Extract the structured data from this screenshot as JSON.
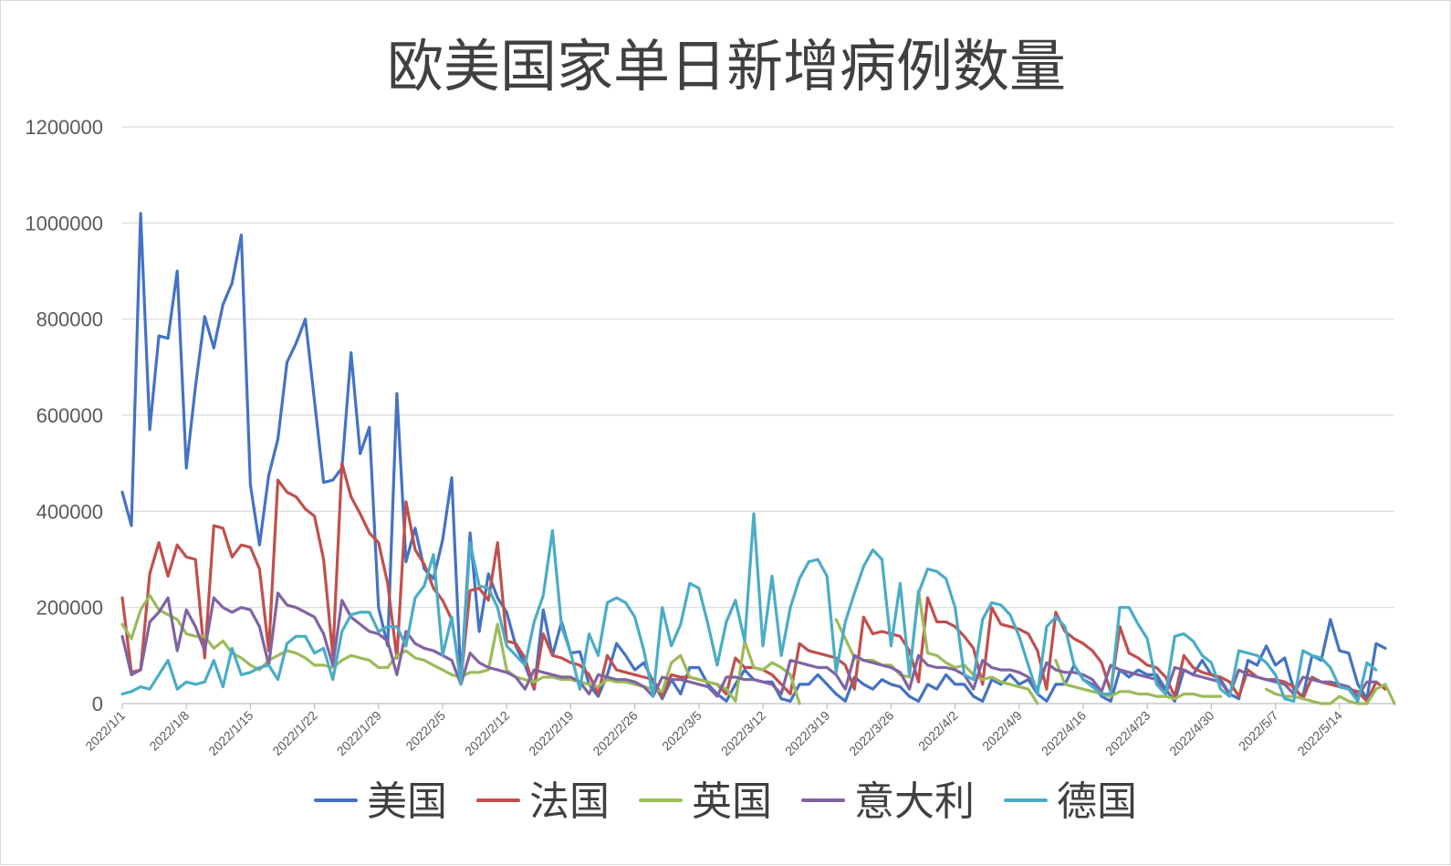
{
  "chart_data": {
    "type": "line",
    "title": "欧美国家单日新增病例数量",
    "xlabel": "",
    "ylabel": "",
    "ylim": [
      0,
      1200000
    ],
    "yticks": [
      "0",
      "200000",
      "400000",
      "600000",
      "800000",
      "1000000",
      "1200000"
    ],
    "ytick_values": [
      0,
      200000,
      400000,
      600000,
      800000,
      1000000,
      1200000
    ],
    "x_start": "2022/1/1",
    "x_end": "2022/5/18",
    "xtick_labels": [
      "2022/1/1",
      "2022/1/8",
      "2022/1/15",
      "2022/1/22",
      "2022/1/29",
      "2022/2/5",
      "2022/2/12",
      "2022/2/19",
      "2022/2/26",
      "2022/3/5",
      "2022/3/12",
      "2022/3/19",
      "2022/3/26",
      "2022/4/2",
      "2022/4/9",
      "2022/4/16",
      "2022/4/23",
      "2022/4/30",
      "2022/5/7",
      "2022/5/14"
    ],
    "grid": true,
    "legend_position": "bottom",
    "series": [
      {
        "name": "美国",
        "color": "#4472c4",
        "values": [
          440000,
          370000,
          1020000,
          570000,
          765000,
          760000,
          900000,
          490000,
          660000,
          805000,
          740000,
          830000,
          875000,
          975000,
          455000,
          330000,
          475000,
          550000,
          710000,
          750000,
          800000,
          630000,
          460000,
          465000,
          490000,
          730000,
          520000,
          575000,
          200000,
          120000,
          645000,
          295000,
          365000,
          280000,
          260000,
          340000,
          470000,
          45000,
          355000,
          150000,
          270000,
          220000,
          190000,
          120000,
          80000,
          30000,
          195000,
          100000,
          170000,
          105000,
          108000,
          40000,
          15000,
          60000,
          125000,
          100000,
          70000,
          85000,
          45000,
          10000,
          50000,
          20000,
          75000,
          75000,
          40000,
          20000,
          5000,
          40000,
          70000,
          50000,
          45000,
          45000,
          10000,
          5000,
          40000,
          40000,
          60000,
          40000,
          20000,
          5000,
          55000,
          40000,
          30000,
          50000,
          40000,
          35000,
          15000,
          5000,
          40000,
          30000,
          60000,
          40000,
          40000,
          15000,
          5000,
          50000,
          40000,
          60000,
          40000,
          50000,
          20000,
          5000,
          40000,
          40000,
          80000,
          50000,
          40000,
          15000,
          5000,
          70000,
          55000,
          70000,
          60000,
          60000,
          30000,
          5000,
          70000,
          60000,
          90000,
          60000,
          50000,
          20000,
          10000,
          90000,
          80000,
          120000,
          80000,
          95000,
          30000,
          15000,
          100000,
          90000,
          175000,
          110000,
          105000,
          40000,
          10000,
          125000,
          115000
        ]
      },
      {
        "name": "法国",
        "color": "#c0504d",
        "values": [
          220000,
          65000,
          70000,
          270000,
          335000,
          265000,
          330000,
          305000,
          300000,
          95000,
          370000,
          365000,
          305000,
          330000,
          325000,
          280000,
          110000,
          465000,
          440000,
          430000,
          405000,
          390000,
          300000,
          100000,
          500000,
          430000,
          395000,
          355000,
          335000,
          250000,
          95000,
          420000,
          320000,
          290000,
          240000,
          215000,
          175000,
          50000,
          235000,
          240000,
          215000,
          335000,
          130000,
          125000,
          95000,
          30000,
          145000,
          100000,
          95000,
          85000,
          80000,
          60000,
          20000,
          100000,
          70000,
          65000,
          60000,
          55000,
          50000,
          15000,
          60000,
          55000,
          55000,
          50000,
          45000,
          40000,
          20000,
          95000,
          75000,
          75000,
          70000,
          60000,
          40000,
          20000,
          125000,
          110000,
          105000,
          100000,
          95000,
          80000,
          30000,
          180000,
          145000,
          150000,
          145000,
          140000,
          110000,
          45000,
          220000,
          170000,
          170000,
          160000,
          140000,
          115000,
          40000,
          200000,
          165000,
          160000,
          155000,
          145000,
          110000,
          30000,
          190000,
          150000,
          135000,
          125000,
          110000,
          85000,
          25000,
          160000,
          105000,
          95000,
          80000,
          75000,
          55000,
          15000,
          100000,
          75000,
          65000,
          60000,
          55000,
          45000,
          15000,
          70000,
          55000,
          50000,
          50000,
          45000,
          35000,
          10000,
          55000,
          45000,
          40000,
          35000,
          30000,
          25000,
          5000,
          45000,
          30000
        ]
      },
      {
        "name": "英国",
        "color": "#9bbb59",
        "values": [
          165000,
          135000,
          195000,
          225000,
          195000,
          185000,
          175000,
          145000,
          140000,
          140000,
          115000,
          130000,
          105000,
          95000,
          80000,
          70000,
          90000,
          100000,
          110000,
          105000,
          95000,
          80000,
          80000,
          75000,
          90000,
          100000,
          95000,
          90000,
          75000,
          75000,
          100000,
          110000,
          95000,
          90000,
          80000,
          70000,
          60000,
          55000,
          65000,
          65000,
          70000,
          165000,
          70000,
          55000,
          50000,
          45000,
          55000,
          55000,
          50000,
          50000,
          45000,
          40000,
          35000,
          50000,
          45000,
          45000,
          40000,
          35000,
          30000,
          25000,
          85000,
          100000,
          55000,
          50000,
          45000,
          40000,
          30000,
          5000,
          130000,
          75000,
          70000,
          85000,
          75000,
          60000,
          0,
          null,
          null,
          null,
          175000,
          135000,
          95000,
          90000,
          90000,
          80000,
          80000,
          60000,
          55000,
          235000,
          105000,
          100000,
          85000,
          75000,
          80000,
          60000,
          50000,
          55000,
          45000,
          40000,
          35000,
          30000,
          0,
          null,
          90000,
          40000,
          35000,
          30000,
          25000,
          20000,
          15000,
          25000,
          25000,
          20000,
          20000,
          15000,
          15000,
          10000,
          20000,
          20000,
          15000,
          15000,
          15000,
          null,
          null,
          null,
          null,
          30000,
          20000,
          15000,
          15000,
          10000,
          5000,
          0,
          0,
          15000,
          5000,
          0,
          0,
          30000,
          40000,
          0
        ]
      },
      {
        "name": "意大利",
        "color": "#8064a2",
        "values": [
          140000,
          60000,
          70000,
          170000,
          190000,
          220000,
          110000,
          195000,
          160000,
          110000,
          220000,
          200000,
          190000,
          200000,
          195000,
          160000,
          80000,
          230000,
          205000,
          200000,
          190000,
          180000,
          145000,
          80000,
          215000,
          180000,
          165000,
          150000,
          145000,
          130000,
          60000,
          150000,
          125000,
          115000,
          110000,
          100000,
          90000,
          40000,
          105000,
          85000,
          75000,
          70000,
          65000,
          55000,
          30000,
          70000,
          65000,
          60000,
          55000,
          55000,
          45000,
          20000,
          60000,
          55000,
          50000,
          50000,
          45000,
          35000,
          15000,
          55000,
          50000,
          50000,
          45000,
          40000,
          35000,
          15000,
          55000,
          55000,
          50000,
          50000,
          45000,
          40000,
          20000,
          90000,
          85000,
          80000,
          75000,
          75000,
          60000,
          30000,
          100000,
          90000,
          85000,
          80000,
          75000,
          65000,
          30000,
          100000,
          80000,
          75000,
          75000,
          70000,
          60000,
          30000,
          90000,
          75000,
          70000,
          70000,
          65000,
          55000,
          30000,
          85000,
          70000,
          65000,
          65000,
          60000,
          50000,
          25000,
          80000,
          70000,
          65000,
          60000,
          55000,
          50000,
          20000,
          75000,
          70000,
          60000,
          55000,
          50000,
          45000,
          20000,
          70000,
          60000,
          55000,
          50000,
          45000,
          40000,
          20000,
          55000,
          50000,
          45000,
          45000,
          40000,
          35000,
          15000,
          45000,
          45000
        ]
      },
      {
        "name": "德国",
        "color": "#4bacc6",
        "values": [
          20000,
          25000,
          35000,
          30000,
          60000,
          90000,
          30000,
          45000,
          40000,
          45000,
          90000,
          35000,
          115000,
          60000,
          65000,
          75000,
          80000,
          50000,
          125000,
          140000,
          140000,
          105000,
          115000,
          50000,
          150000,
          185000,
          190000,
          190000,
          150000,
          160000,
          160000,
          120000,
          220000,
          245000,
          310000,
          100000,
          180000,
          40000,
          335000,
          245000,
          240000,
          200000,
          120000,
          100000,
          80000,
          170000,
          225000,
          360000,
          160000,
          105000,
          30000,
          145000,
          100000,
          210000,
          220000,
          210000,
          180000,
          110000,
          15000,
          200000,
          120000,
          165000,
          250000,
          240000,
          165000,
          80000,
          170000,
          215000,
          130000,
          395000,
          120000,
          265000,
          100000,
          200000,
          260000,
          295000,
          300000,
          265000,
          65000,
          170000,
          230000,
          285000,
          320000,
          300000,
          120000,
          250000,
          60000,
          230000,
          280000,
          275000,
          260000,
          200000,
          60000,
          50000,
          175000,
          210000,
          205000,
          185000,
          140000,
          80000,
          20000,
          160000,
          180000,
          160000,
          80000,
          50000,
          35000,
          20000,
          20000,
          200000,
          200000,
          165000,
          135000,
          40000,
          20000,
          140000,
          145000,
          130000,
          100000,
          85000,
          30000,
          15000,
          110000,
          105000,
          100000,
          85000,
          60000,
          10000,
          5000,
          110000,
          100000,
          95000,
          75000,
          35000,
          30000,
          5000,
          85000,
          70000
        ]
      }
    ]
  }
}
